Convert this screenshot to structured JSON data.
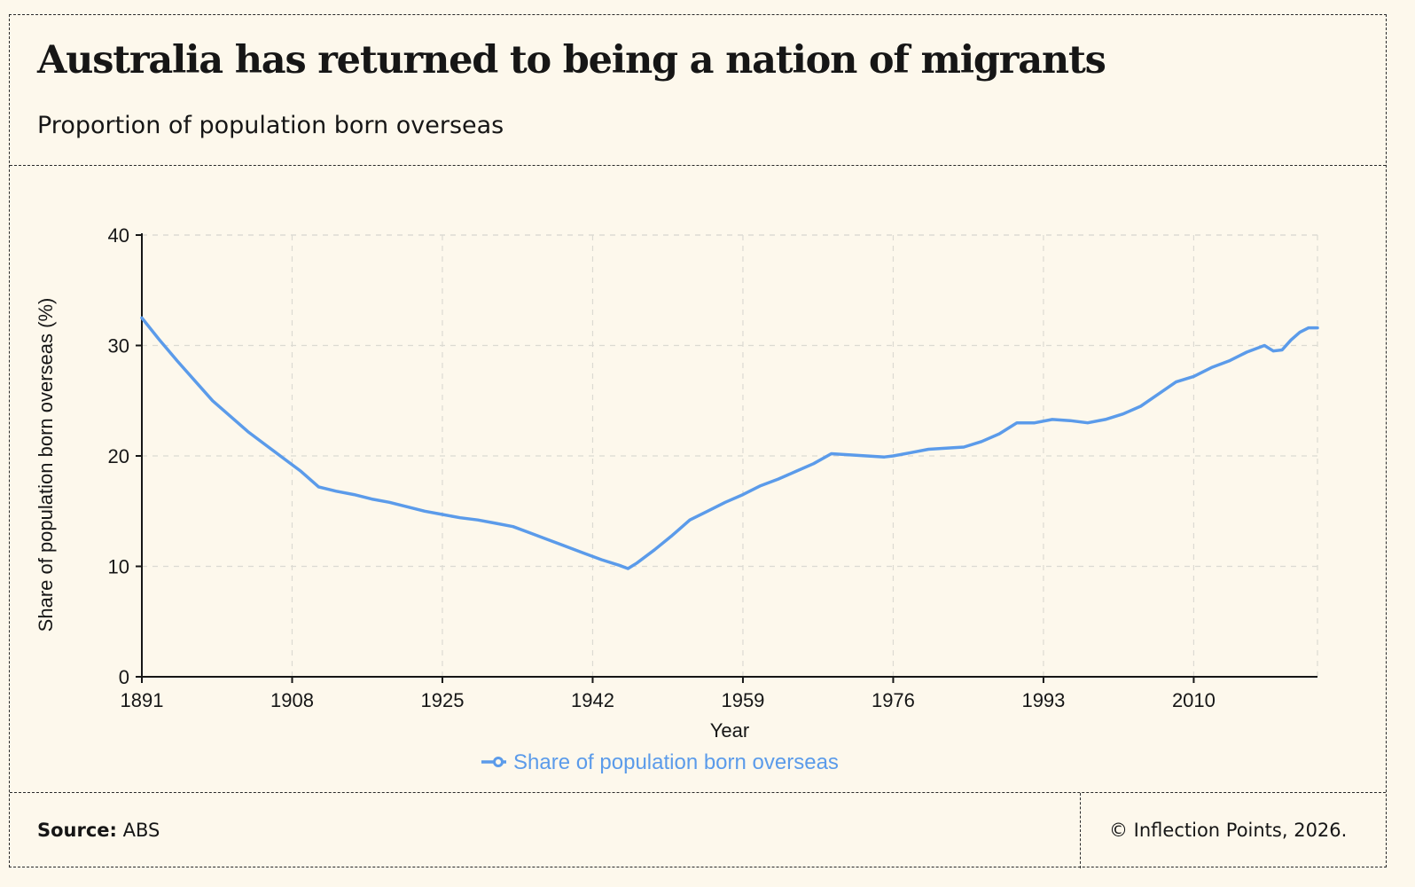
{
  "header": {
    "title": "Australia has returned to being a nation of migrants",
    "subtitle": "Proportion of population born overseas"
  },
  "footer": {
    "source_label": "Source:",
    "source_value": "ABS",
    "copyright": "© Inflection Points, 2026."
  },
  "colors": {
    "background": "#fdf8ec",
    "series": "#5b9bea",
    "text": "#161616"
  },
  "chart_data": {
    "type": "line",
    "xlabel": "Year",
    "ylabel": "Share of population born overseas (%)",
    "xlim": [
      1891,
      2024
    ],
    "ylim": [
      0,
      40
    ],
    "xticks": [
      1891,
      1908,
      1925,
      1942,
      1959,
      1976,
      1993,
      2010
    ],
    "yticks": [
      0,
      10,
      20,
      30,
      40
    ],
    "grid": true,
    "legend": "bottom-center",
    "series": [
      {
        "name": "Share of population born overseas",
        "color": "#5b9bea",
        "x": [
          1891,
          1893,
          1895,
          1897,
          1899,
          1901,
          1903,
          1905,
          1907,
          1909,
          1911,
          1913,
          1915,
          1917,
          1919,
          1921,
          1923,
          1925,
          1927,
          1929,
          1931,
          1933,
          1935,
          1937,
          1939,
          1941,
          1943,
          1945,
          1946,
          1947,
          1949,
          1951,
          1953,
          1955,
          1957,
          1959,
          1961,
          1963,
          1965,
          1967,
          1969,
          1971,
          1973,
          1975,
          1976,
          1978,
          1980,
          1982,
          1984,
          1986,
          1988,
          1990,
          1992,
          1994,
          1996,
          1998,
          2000,
          2002,
          2004,
          2006,
          2008,
          2010,
          2012,
          2014,
          2016,
          2018,
          2019,
          2020,
          2021,
          2022,
          2023,
          2024
        ],
        "values": [
          32.5,
          30.5,
          28.6,
          26.8,
          25.0,
          23.6,
          22.2,
          21.0,
          19.8,
          18.6,
          17.2,
          16.8,
          16.5,
          16.1,
          15.8,
          15.4,
          15.0,
          14.7,
          14.4,
          14.2,
          13.9,
          13.6,
          13.0,
          12.4,
          11.8,
          11.2,
          10.6,
          10.1,
          9.8,
          10.3,
          11.5,
          12.8,
          14.2,
          15.0,
          15.8,
          16.5,
          17.3,
          17.9,
          18.6,
          19.3,
          20.2,
          20.1,
          20.0,
          19.9,
          20.0,
          20.3,
          20.6,
          20.7,
          20.8,
          21.3,
          22.0,
          23.0,
          23.0,
          23.3,
          23.2,
          23.0,
          23.3,
          23.8,
          24.5,
          25.6,
          26.7,
          27.2,
          28.0,
          28.6,
          29.4,
          30.0,
          29.5,
          29.6,
          30.5,
          31.2,
          31.6,
          31.6
        ]
      }
    ]
  }
}
